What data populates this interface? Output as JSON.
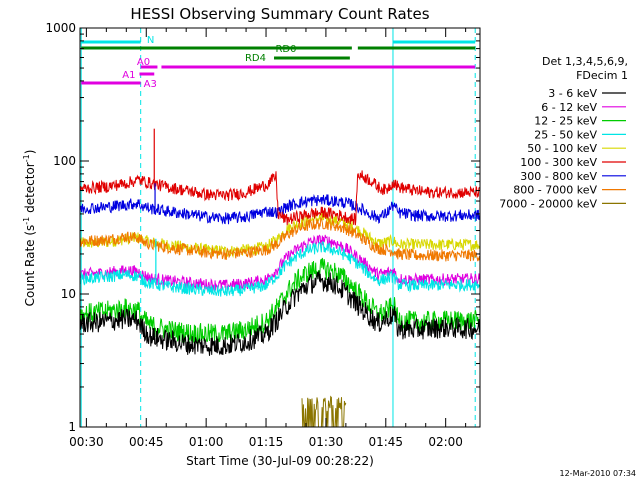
{
  "chart_data": {
    "type": "line",
    "title": "HESSI Observing Summary Count Rates",
    "xlabel": "Start Time (30-Jul-09 00:28:22)",
    "ylabel_main": "Count Rate (s",
    "ylabel_sup1": "-1",
    "ylabel_mid": " detector",
    "ylabel_sup2": "-1",
    "ylabel_end": ")",
    "yscale": "log",
    "ylim": [
      1,
      1000
    ],
    "xlim_min": [
      28.4,
      128.6
    ],
    "x_ticks": [
      {
        "min": 30,
        "label": "00:30"
      },
      {
        "min": 45,
        "label": "00:45"
      },
      {
        "min": 60,
        "label": "01:00"
      },
      {
        "min": 75,
        "label": "01:15"
      },
      {
        "min": 90,
        "label": "01:30"
      },
      {
        "min": 105,
        "label": "01:45"
      },
      {
        "min": 120,
        "label": "02:00"
      }
    ],
    "y_ticks": [
      {
        "v": 1,
        "label": "1"
      },
      {
        "v": 10,
        "label": "10"
      },
      {
        "v": 100,
        "label": "100"
      },
      {
        "v": 1000,
        "label": "1000"
      }
    ],
    "legend_header": [
      "Det 1,3,4,5,6,9,",
      "FDecim 1"
    ],
    "legend_placement": "right",
    "series": [
      {
        "name": "3 - 6 keV",
        "color": "#000000",
        "x": [
          28.5,
          35,
          40,
          43,
          44,
          46,
          50,
          55,
          60,
          65,
          70,
          75,
          78,
          80,
          83,
          86,
          89,
          92,
          95,
          98,
          101,
          103,
          105,
          107,
          108,
          112,
          116,
          120,
          124,
          128.5
        ],
        "y": [
          6.0,
          6.2,
          6.5,
          6.3,
          5.5,
          4.8,
          4.5,
          4.2,
          4.1,
          4.1,
          4.4,
          5.0,
          6.5,
          8.0,
          10.2,
          12.0,
          12.6,
          12.0,
          10.2,
          8.2,
          6.8,
          6.0,
          6.5,
          7.0,
          5.5,
          5.4,
          5.5,
          5.6,
          5.5,
          5.5
        ]
      },
      {
        "name": "6 - 12 keV",
        "color": "#e000e0",
        "x": [
          28.5,
          35,
          40,
          43,
          44,
          46,
          50,
          55,
          60,
          65,
          70,
          75,
          78,
          80,
          83,
          86,
          89,
          92,
          95,
          98,
          101,
          103,
          105,
          107,
          108,
          112,
          116,
          120,
          124,
          128.5
        ],
        "y": [
          14.0,
          14.5,
          15.0,
          14.8,
          14.0,
          13.2,
          12.6,
          12.2,
          11.8,
          11.6,
          12.0,
          12.8,
          15.5,
          18.5,
          22.0,
          24.5,
          25.5,
          24.5,
          22.0,
          18.8,
          15.8,
          14.0,
          14.4,
          15.0,
          13.0,
          12.8,
          12.8,
          12.9,
          12.9,
          13.0
        ]
      },
      {
        "name": "12 - 25 keV",
        "color": "#00cc00",
        "x": [
          28.5,
          35,
          40,
          43,
          44,
          46,
          50,
          55,
          60,
          65,
          70,
          75,
          78,
          80,
          83,
          86,
          89,
          92,
          95,
          98,
          101,
          103,
          105,
          107,
          108,
          112,
          116,
          120,
          124,
          128.5
        ],
        "y": [
          7.0,
          7.4,
          7.8,
          7.5,
          6.5,
          5.8,
          5.4,
          5.1,
          5.0,
          5.0,
          5.4,
          6.2,
          8.0,
          10.0,
          12.8,
          14.8,
          15.6,
          14.8,
          12.8,
          10.2,
          8.2,
          7.0,
          7.4,
          8.2,
          6.4,
          6.2,
          6.2,
          6.3,
          6.3,
          6.3
        ]
      },
      {
        "name": "25 - 50 keV",
        "color": "#00e5e5",
        "x": [
          28.5,
          35,
          40,
          43,
          44,
          46,
          50,
          55,
          60,
          65,
          70,
          75,
          78,
          80,
          83,
          86,
          89,
          92,
          95,
          98,
          101,
          103,
          105,
          107,
          108,
          112,
          116,
          120,
          124,
          128.5
        ],
        "y": [
          13.0,
          13.4,
          14.0,
          13.6,
          12.8,
          12.0,
          11.4,
          11.0,
          10.6,
          10.4,
          10.8,
          11.6,
          14.0,
          16.5,
          19.5,
          21.5,
          22.5,
          21.5,
          19.5,
          16.8,
          14.0,
          12.6,
          13.0,
          13.6,
          11.8,
          11.6,
          11.6,
          11.7,
          11.7,
          11.8
        ]
      },
      {
        "name": "50 - 100 keV",
        "color": "#d8d800",
        "x": [
          28.5,
          35,
          40,
          43,
          44,
          46,
          50,
          55,
          60,
          65,
          70,
          75,
          78,
          80,
          83,
          86,
          89,
          92,
          95,
          98,
          101,
          103,
          105,
          107,
          108,
          112,
          116,
          120,
          124,
          128.5
        ],
        "y": [
          24.0,
          24.5,
          26.0,
          26.5,
          25.5,
          24.5,
          23.5,
          22.5,
          21.5,
          21.0,
          21.5,
          22.5,
          26.0,
          30.5,
          34.0,
          36.0,
          37.0,
          36.0,
          34.0,
          30.5,
          26.5,
          24.0,
          24.5,
          25.0,
          23.5,
          23.5,
          23.5,
          23.5,
          23.5,
          23.5
        ]
      },
      {
        "name": "100 - 300 keV",
        "color": "#e00000",
        "x": [
          28.5,
          35,
          40,
          43,
          44,
          46,
          50,
          55,
          60,
          65,
          70,
          75,
          77.5,
          78,
          80,
          83,
          86,
          89,
          92,
          95,
          97.5,
          98,
          101,
          103,
          105,
          107,
          108,
          112,
          116,
          120,
          124,
          128.5
        ],
        "y": [
          62.0,
          64.0,
          68.0,
          72.0,
          71.0,
          68.0,
          64.0,
          60.0,
          56.0,
          55.0,
          58.0,
          66.0,
          76.0,
          40.0,
          36.0,
          38.0,
          40.0,
          41.0,
          40.0,
          38.0,
          36.0,
          80.0,
          72.0,
          64.0,
          60.0,
          70.0,
          64.0,
          60.0,
          58.0,
          58.0,
          58.0,
          58.0
        ]
      },
      {
        "name": "300 - 800 keV",
        "color": "#0000e0",
        "x": [
          28.5,
          35,
          40,
          43,
          44,
          46,
          50,
          55,
          60,
          65,
          70,
          75,
          78,
          80,
          83,
          86,
          89,
          92,
          95,
          98,
          101,
          103,
          105,
          107,
          108,
          112,
          116,
          120,
          124,
          128.5
        ],
        "y": [
          44.0,
          45.0,
          47.0,
          48.0,
          46.0,
          44.0,
          42.0,
          40.0,
          38.0,
          37.0,
          38.0,
          42.0,
          41.0,
          45.0,
          48.5,
          50.0,
          51.0,
          50.0,
          48.5,
          45.0,
          40.0,
          37.5,
          40.0,
          47.0,
          41.0,
          39.0,
          38.5,
          38.5,
          39.0,
          39.0
        ]
      },
      {
        "name": "800 - 7000 keV",
        "color": "#f07800",
        "x": [
          28.5,
          35,
          40,
          43,
          44,
          46,
          50,
          55,
          60,
          65,
          70,
          75,
          78,
          80,
          83,
          86,
          89,
          92,
          95,
          98,
          101,
          103,
          105,
          107,
          108,
          112,
          116,
          120,
          124,
          128.5
        ],
        "y": [
          25.0,
          25.5,
          27.0,
          26.5,
          25.0,
          23.5,
          22.5,
          21.5,
          20.5,
          20.0,
          20.5,
          21.5,
          24.0,
          27.5,
          31.0,
          33.0,
          34.0,
          33.0,
          31.0,
          27.5,
          24.0,
          22.0,
          21.5,
          21.0,
          20.0,
          19.5,
          19.5,
          19.5,
          19.5,
          19.5
        ]
      },
      {
        "name": "7000 - 20000 keV",
        "color": "#8b7500",
        "x": [
          84,
          85,
          86,
          87,
          88,
          89,
          90,
          91,
          92,
          93,
          94,
          95
        ],
        "y": [
          1.6,
          1.0,
          1.6,
          1.0,
          1.6,
          1.6,
          1.0,
          1.6,
          1.6,
          1.0,
          1.6,
          1.0
        ]
      }
    ],
    "spikes": [
      {
        "x": 47.0,
        "series": "100 - 300 keV",
        "y": 175
      },
      {
        "x": 47.2,
        "series": "300 - 800 keV",
        "y": 68
      },
      {
        "x": 47.4,
        "series": "25 - 50 keV",
        "y": 26
      }
    ],
    "boundaries_solid": [
      {
        "min": 28.7,
        "color": "#00e5e5"
      },
      {
        "min": 106.8,
        "color": "#00e5e5"
      }
    ],
    "boundaries_dashed": [
      {
        "min": 43.6,
        "color": "#00e5e5"
      },
      {
        "min": 127.4,
        "color": "#00e5e5"
      }
    ],
    "flag_bars": [
      {
        "label": "N",
        "color": "#00e5e5",
        "level": 0,
        "segments": [
          [
            28.7,
            43.6
          ],
          [
            106.8,
            127.4
          ]
        ]
      },
      {
        "label": "RD0",
        "color": "#008000",
        "level": 1,
        "segments": [
          [
            28.7,
            96.5
          ],
          [
            98.0,
            127.4
          ]
        ]
      },
      {
        "label": "RD4",
        "color": "#008000",
        "level": 2,
        "segments": [
          [
            77.0,
            96.0
          ]
        ]
      },
      {
        "label": "A0",
        "color": "#e000e0",
        "level": 3,
        "segments": [
          [
            43.6,
            47.8
          ],
          [
            48.8,
            127.4
          ]
        ]
      },
      {
        "label": "A1",
        "color": "#e000e0",
        "level": 4,
        "segments": [
          [
            43.3,
            47.0
          ]
        ]
      },
      {
        "label": "A3",
        "color": "#e000e0",
        "level": 5,
        "segments": [
          [
            28.7,
            43.6
          ]
        ]
      }
    ],
    "timestamp": "12-Mar-2010 07:34"
  }
}
